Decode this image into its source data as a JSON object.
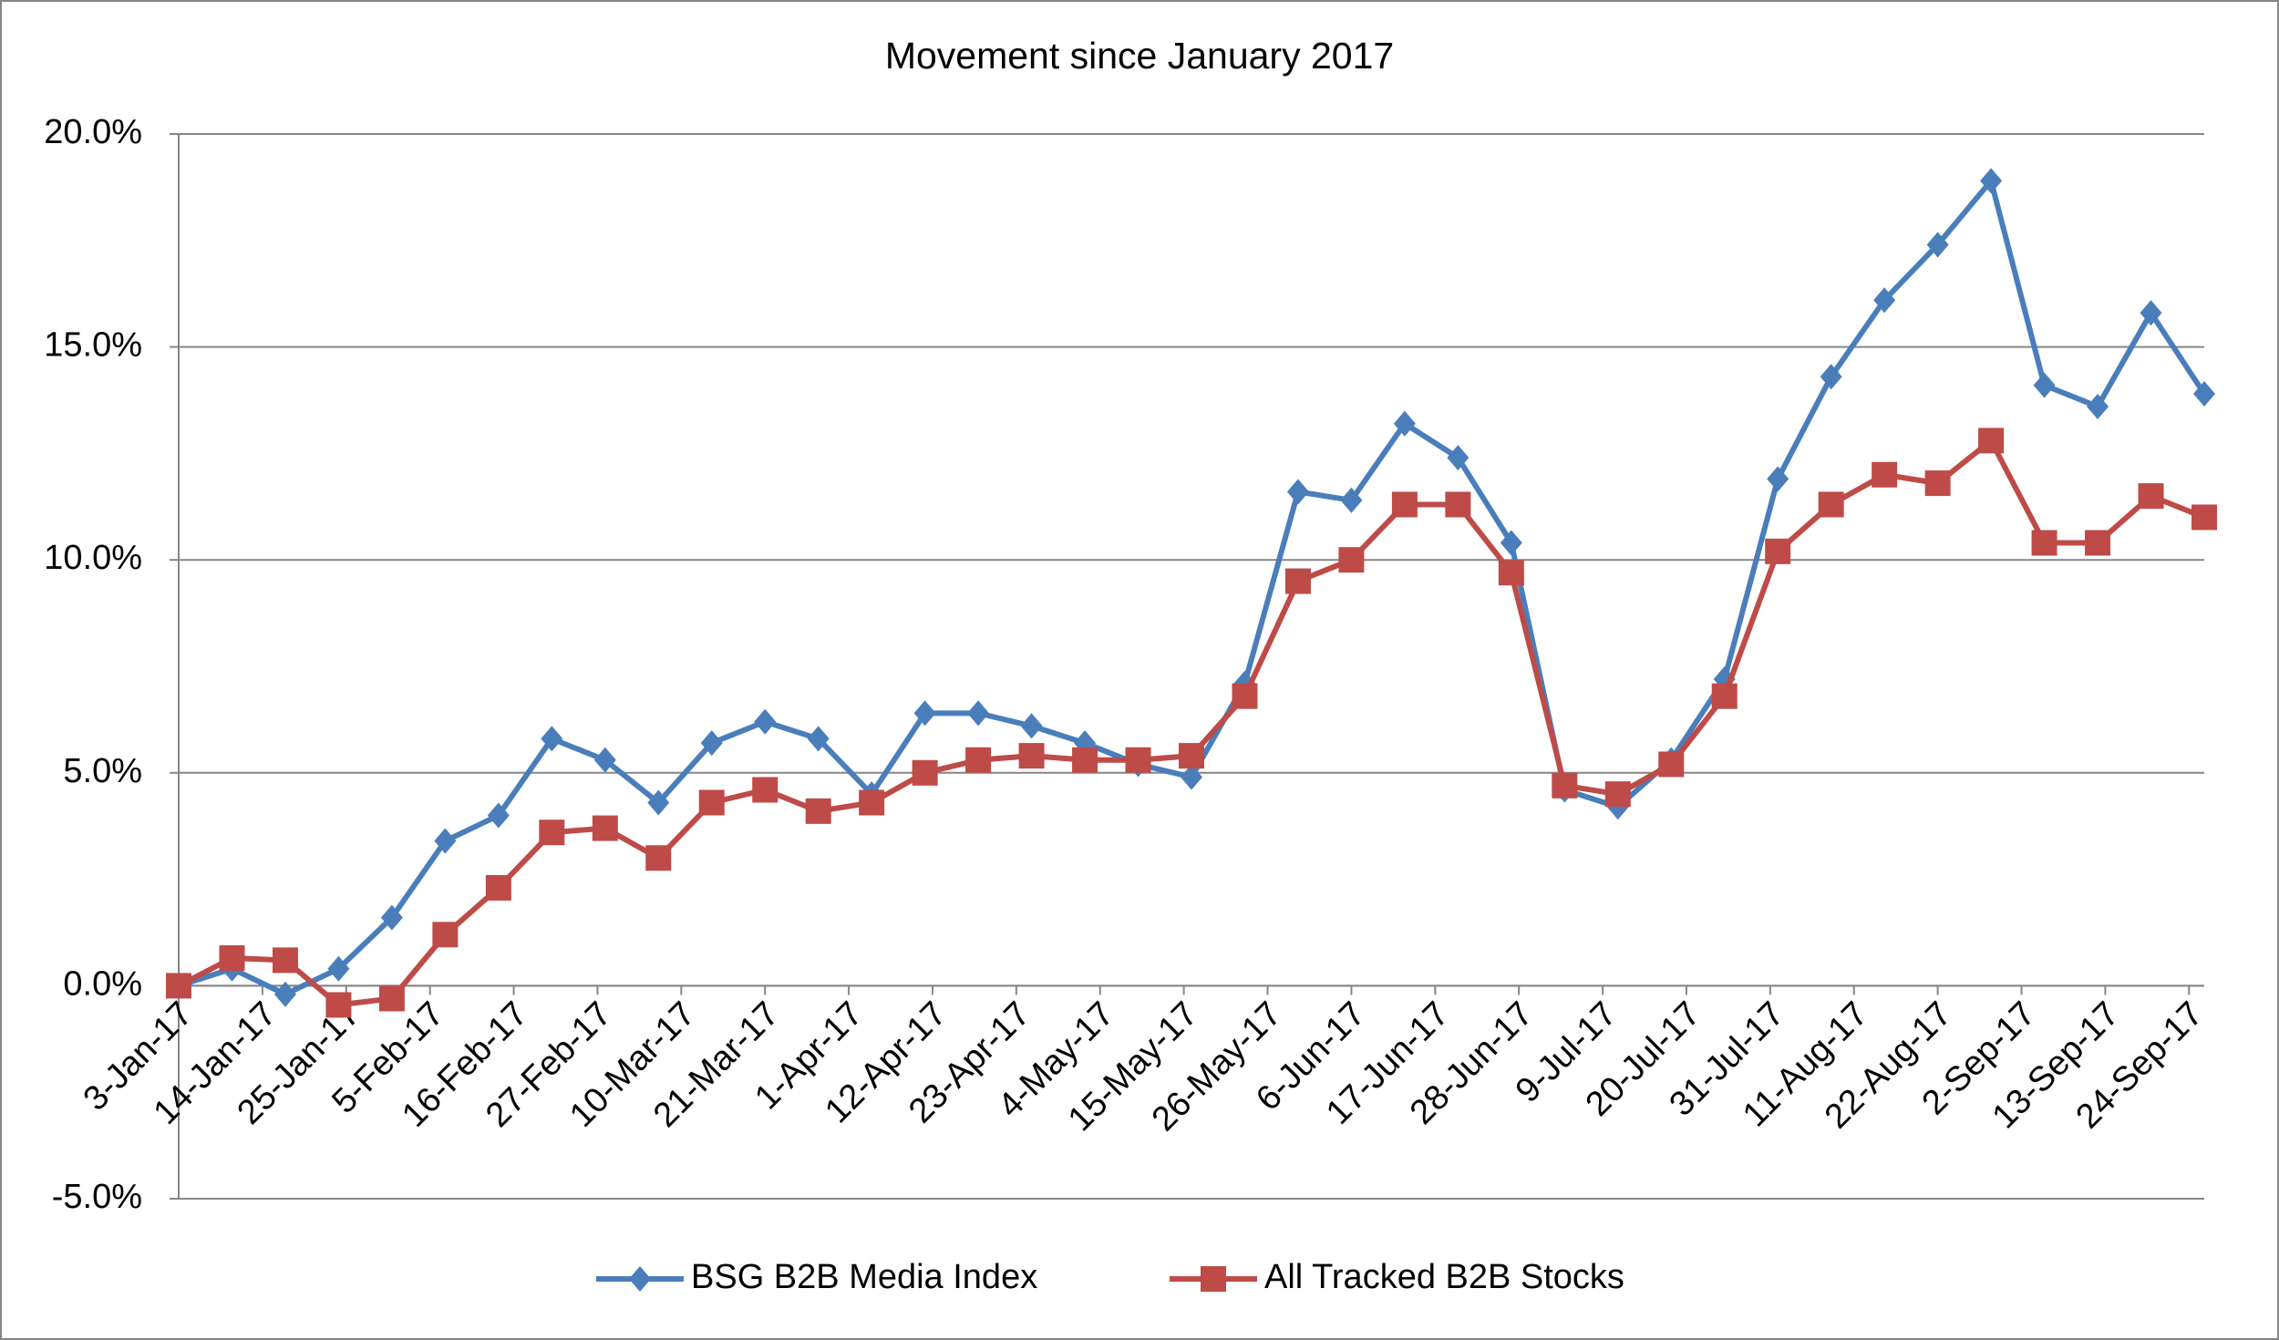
{
  "chart_data": {
    "type": "line",
    "title": "Movement since January 2017",
    "x": [
      "2017-01-03",
      "2017-01-10",
      "2017-01-17",
      "2017-01-24",
      "2017-01-31",
      "2017-02-07",
      "2017-02-14",
      "2017-02-21",
      "2017-02-28",
      "2017-03-07",
      "2017-03-14",
      "2017-03-21",
      "2017-03-28",
      "2017-04-04",
      "2017-04-11",
      "2017-04-18",
      "2017-04-25",
      "2017-05-02",
      "2017-05-09",
      "2017-05-16",
      "2017-05-23",
      "2017-05-30",
      "2017-06-06",
      "2017-06-13",
      "2017-06-20",
      "2017-06-27",
      "2017-07-04",
      "2017-07-11",
      "2017-07-18",
      "2017-07-25",
      "2017-08-01",
      "2017-08-08",
      "2017-08-15",
      "2017-08-22",
      "2017-08-29",
      "2017-09-05",
      "2017-09-12",
      "2017-09-19",
      "2017-09-26"
    ],
    "series": [
      {
        "name": "BSG B2B Media Index",
        "color": "#4a7ebb",
        "marker": "diamond",
        "values": [
          0,
          0.4,
          -0.2,
          0.4,
          1.6,
          3.4,
          4.0,
          5.8,
          5.3,
          4.3,
          5.7,
          6.2,
          5.8,
          4.5,
          6.4,
          6.4,
          6.1,
          5.7,
          5.2,
          4.9,
          7.1,
          11.6,
          11.4,
          13.2,
          12.4,
          10.4,
          4.6,
          4.2,
          5.3,
          7.2,
          11.9,
          14.3,
          16.1,
          17.4,
          18.9,
          14.1,
          13.6,
          15.8,
          13.9
        ]
      },
      {
        "name": "All Tracked B2B Stocks",
        "color": "#be4b48",
        "marker": "square",
        "values": [
          0,
          0.65,
          0.6,
          -0.45,
          -0.3,
          1.2,
          2.3,
          3.6,
          3.7,
          3.0,
          4.3,
          4.6,
          4.1,
          4.3,
          5.0,
          5.3,
          5.4,
          5.3,
          5.3,
          5.4,
          6.8,
          9.5,
          10.0,
          11.3,
          11.3,
          9.7,
          4.7,
          4.5,
          5.2,
          6.8,
          10.2,
          11.3,
          12.0,
          11.8,
          12.8,
          10.4,
          10.4,
          11.5,
          11.0
        ]
      }
    ],
    "xlim": [
      "2017-01-03",
      "2017-09-26"
    ],
    "xticks": [
      {
        "value": "2017-01-03",
        "label": "3-Jan-17"
      },
      {
        "value": "2017-01-14",
        "label": "14-Jan-17"
      },
      {
        "value": "2017-01-25",
        "label": "25-Jan-17"
      },
      {
        "value": "2017-02-05",
        "label": "5-Feb-17"
      },
      {
        "value": "2017-02-16",
        "label": "16-Feb-17"
      },
      {
        "value": "2017-02-27",
        "label": "27-Feb-17"
      },
      {
        "value": "2017-03-10",
        "label": "10-Mar-17"
      },
      {
        "value": "2017-03-21",
        "label": "21-Mar-17"
      },
      {
        "value": "2017-04-01",
        "label": "1-Apr-17"
      },
      {
        "value": "2017-04-12",
        "label": "12-Apr-17"
      },
      {
        "value": "2017-04-23",
        "label": "23-Apr-17"
      },
      {
        "value": "2017-05-04",
        "label": "4-May-17"
      },
      {
        "value": "2017-05-15",
        "label": "15-May-17"
      },
      {
        "value": "2017-05-26",
        "label": "26-May-17"
      },
      {
        "value": "2017-06-06",
        "label": "6-Jun-17"
      },
      {
        "value": "2017-06-17",
        "label": "17-Jun-17"
      },
      {
        "value": "2017-06-28",
        "label": "28-Jun-17"
      },
      {
        "value": "2017-07-09",
        "label": "9-Jul-17"
      },
      {
        "value": "2017-07-20",
        "label": "20-Jul-17"
      },
      {
        "value": "2017-07-31",
        "label": "31-Jul-17"
      },
      {
        "value": "2017-08-11",
        "label": "11-Aug-17"
      },
      {
        "value": "2017-08-22",
        "label": "22-Aug-17"
      },
      {
        "value": "2017-09-02",
        "label": "2-Sep-17"
      },
      {
        "value": "2017-09-13",
        "label": "13-Sep-17"
      },
      {
        "value": "2017-09-24",
        "label": "24-Sep-17"
      }
    ],
    "ylim": [
      -5,
      20
    ],
    "yticks": [
      {
        "value": -5,
        "label": "-5.0%"
      },
      {
        "value": 0,
        "label": "0.0%"
      },
      {
        "value": 5,
        "label": "5.0%"
      },
      {
        "value": 10,
        "label": "10.0%"
      },
      {
        "value": 15,
        "label": "15.0%"
      },
      {
        "value": 20,
        "label": "20.0%"
      }
    ],
    "grid": true,
    "legend": "bottom"
  }
}
